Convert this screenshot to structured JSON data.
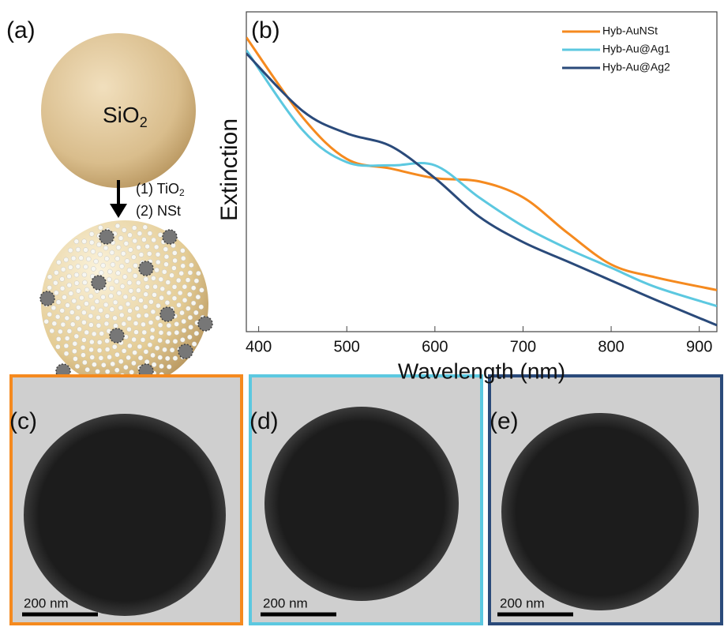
{
  "panels": {
    "a": {
      "label": "(a)",
      "sphere": {
        "text": "SiO",
        "sub": "2"
      },
      "step1": {
        "text": "(1) TiO",
        "sub": "2"
      },
      "step2": "(2)  NSt"
    },
    "c": {
      "label": "(c)",
      "scale_bar": "200 nm"
    },
    "d": {
      "label": "(d)",
      "scale_bar": "200 nm"
    },
    "e": {
      "label": "(e)",
      "scale_bar": "200 nm"
    }
  },
  "chart_data": {
    "type": "line",
    "label": "(b)",
    "x_label": "Wavelength (nm)",
    "y_label": "Extinction",
    "x": [
      386,
      450,
      500,
      550,
      600,
      650,
      700,
      750,
      800,
      850,
      920
    ],
    "series": [
      {
        "name": "Hyb-AuNSt",
        "color": "#f58a1f",
        "values": [
          92,
          67,
          54,
          51,
          48,
          47,
          42,
          31,
          21,
          17,
          13
        ]
      },
      {
        "name": "Hyb-Au@Ag1",
        "color": "#5cc8e0",
        "values": [
          88,
          63,
          53,
          52,
          52,
          42,
          33,
          26,
          20,
          14,
          8
        ]
      },
      {
        "name": "Hyb-Au@Ag2",
        "color": "#2a4a7a",
        "values": [
          87,
          69,
          62,
          58,
          48,
          36,
          28,
          22,
          16,
          10,
          2
        ]
      }
    ],
    "xlim": [
      386,
      920
    ],
    "ylim": [
      0,
      100
    ],
    "xticks": [
      400,
      500,
      600,
      700,
      800,
      900
    ],
    "legend": "top-right"
  }
}
